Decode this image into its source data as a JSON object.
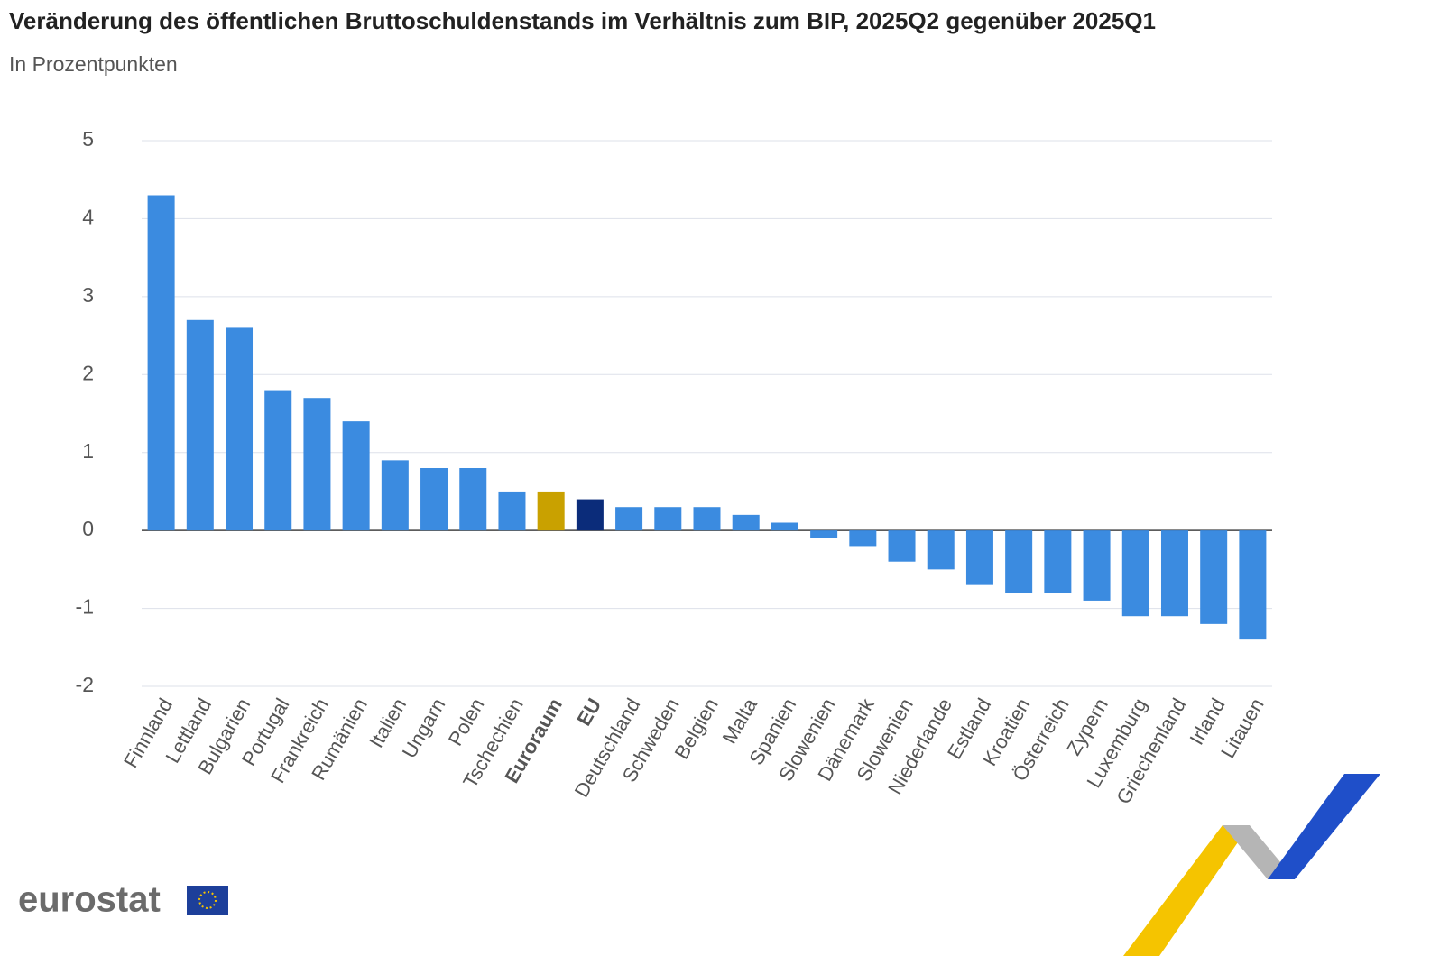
{
  "chart_data": {
    "type": "bar",
    "title": "Veränderung des öffentlichen Bruttoschuldenstands im Verhältnis zum BIP, 2025Q2 gegenüber 2025Q1",
    "subtitle": "In Prozentpunkten",
    "categories": [
      "Finnland",
      "Lettland",
      "Bulgarien",
      "Portugal",
      "Frankreich",
      "Rumänien",
      "Italien",
      "Ungarn",
      "Polen",
      "Tschechien",
      "Euroraum",
      "EU",
      "Deutschland",
      "Schweden",
      "Belgien",
      "Malta",
      "Spanien",
      "Slowenien",
      "Dänemark",
      "Slowenien",
      "Niederlande",
      "Estland",
      "Kroatien",
      "Österreich",
      "Zypern",
      "Luxemburg",
      "Griechenland",
      "Irland",
      "Litauen"
    ],
    "values": [
      4.3,
      2.7,
      2.6,
      1.8,
      1.7,
      1.4,
      0.9,
      0.8,
      0.8,
      0.5,
      0.5,
      0.4,
      0.3,
      0.3,
      0.3,
      0.2,
      0.1,
      -0.1,
      -0.2,
      -0.4,
      -0.5,
      -0.7,
      -0.8,
      -0.8,
      -0.9,
      -1.1,
      -1.1,
      -1.2,
      -1.4
    ],
    "color": "#3b8be0",
    "colors": [
      "#3b8be0",
      "#3b8be0",
      "#3b8be0",
      "#3b8be0",
      "#3b8be0",
      "#3b8be0",
      "#3b8be0",
      "#3b8be0",
      "#3b8be0",
      "#3b8be0",
      "#c9a100",
      "#0b2c7a",
      "#3b8be0",
      "#3b8be0",
      "#3b8be0",
      "#3b8be0",
      "#3b8be0",
      "#3b8be0",
      "#3b8be0",
      "#3b8be0",
      "#3b8be0",
      "#3b8be0",
      "#3b8be0",
      "#3b8be0",
      "#3b8be0",
      "#3b8be0",
      "#3b8be0",
      "#3b8be0",
      "#3b8be0"
    ],
    "ylim": [
      -2,
      5
    ],
    "yticks": [
      -2,
      -1,
      0,
      1,
      2,
      3,
      4,
      5
    ],
    "grid": true
  },
  "logo": "eurostat"
}
